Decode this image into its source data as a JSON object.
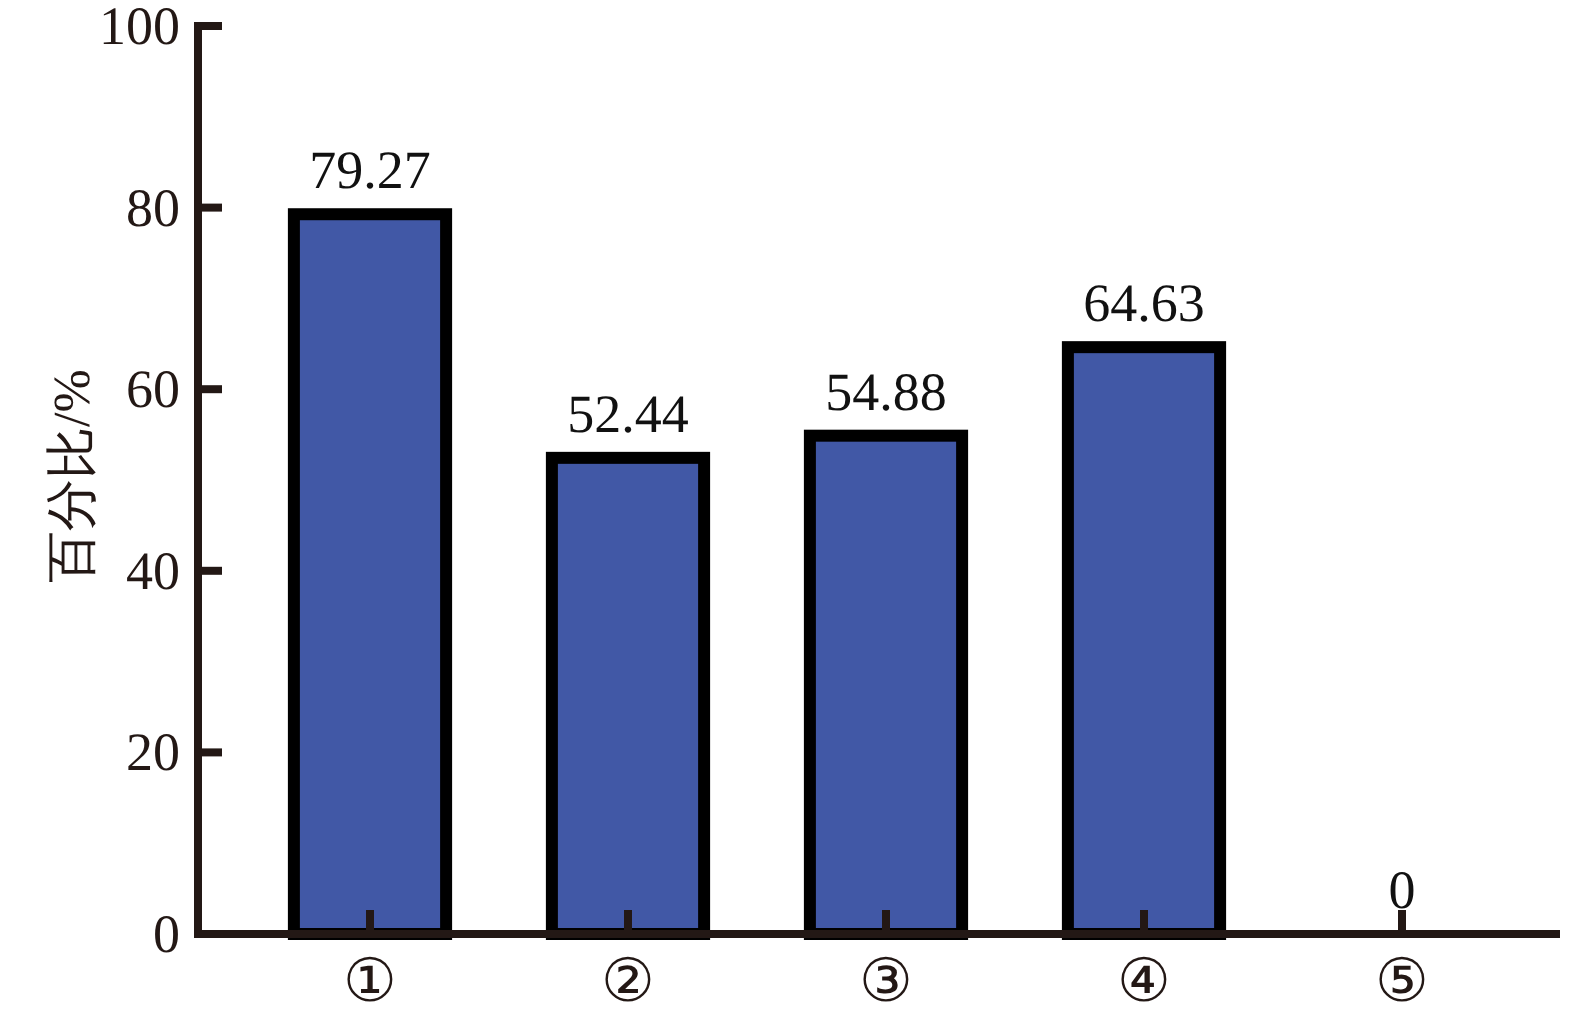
{
  "chart_data": {
    "type": "bar",
    "ylabel": "百分比/%",
    "categories": [
      "①",
      "②",
      "③",
      "④",
      "⑤"
    ],
    "values": [
      79.27,
      52.44,
      54.88,
      64.63,
      0
    ],
    "color": "#4158a6",
    "ylim": [
      0,
      100
    ],
    "yticks": [
      0,
      20,
      40,
      60,
      80,
      100
    ],
    "data_labels": true
  }
}
